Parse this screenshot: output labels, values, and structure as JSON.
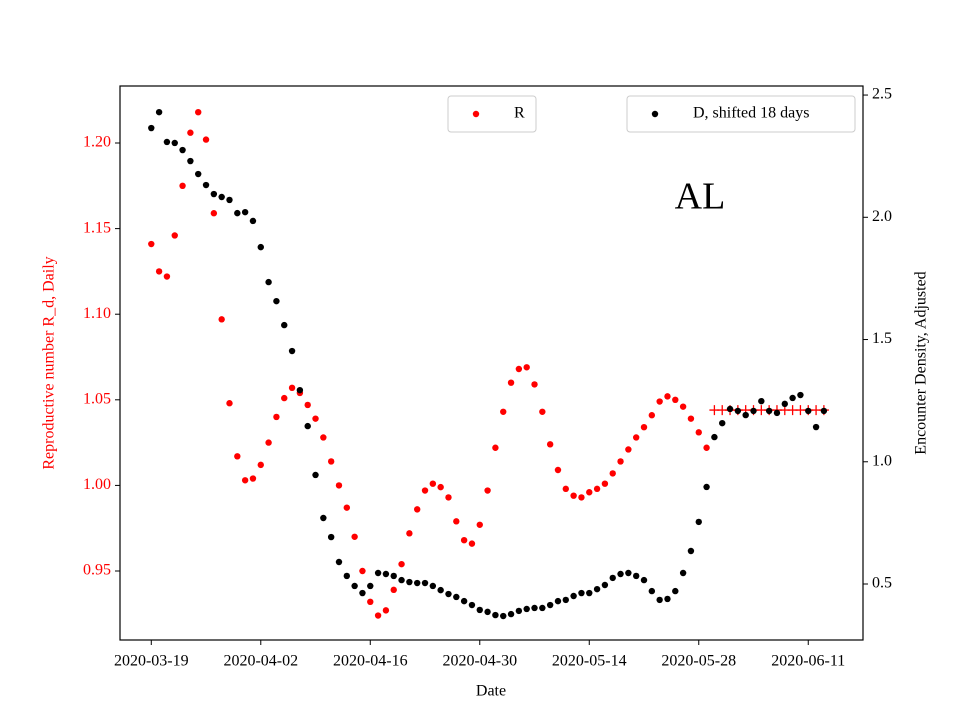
{
  "chart_data": {
    "type": "scatter",
    "annotation": "AL",
    "xlabel": "Date",
    "ylabel": "Reproductive number R_d, Daily",
    "y2label": "Encounter Density, Adjusted",
    "x": [
      "2020-03-19",
      "2020-03-20",
      "2020-03-21",
      "2020-03-22",
      "2020-03-23",
      "2020-03-24",
      "2020-03-25",
      "2020-03-26",
      "2020-03-27",
      "2020-03-28",
      "2020-03-29",
      "2020-03-30",
      "2020-03-31",
      "2020-04-01",
      "2020-04-02",
      "2020-04-03",
      "2020-04-04",
      "2020-04-05",
      "2020-04-06",
      "2020-04-07",
      "2020-04-08",
      "2020-04-09",
      "2020-04-10",
      "2020-04-11",
      "2020-04-12",
      "2020-04-13",
      "2020-04-14",
      "2020-04-15",
      "2020-04-16",
      "2020-04-17",
      "2020-04-18",
      "2020-04-19",
      "2020-04-20",
      "2020-04-21",
      "2020-04-22",
      "2020-04-23",
      "2020-04-24",
      "2020-04-25",
      "2020-04-26",
      "2020-04-27",
      "2020-04-28",
      "2020-04-29",
      "2020-04-30",
      "2020-05-01",
      "2020-05-02",
      "2020-05-03",
      "2020-05-04",
      "2020-05-05",
      "2020-05-06",
      "2020-05-07",
      "2020-05-08",
      "2020-05-09",
      "2020-05-10",
      "2020-05-11",
      "2020-05-12",
      "2020-05-13",
      "2020-05-14",
      "2020-05-15",
      "2020-05-16",
      "2020-05-17",
      "2020-05-18",
      "2020-05-19",
      "2020-05-20",
      "2020-05-21",
      "2020-05-22",
      "2020-05-23",
      "2020-05-24",
      "2020-05-25",
      "2020-05-26",
      "2020-05-27",
      "2020-05-28",
      "2020-05-29",
      "2020-05-30",
      "2020-05-31",
      "2020-06-01",
      "2020-06-02",
      "2020-06-03",
      "2020-06-04",
      "2020-06-05",
      "2020-06-06",
      "2020-06-07",
      "2020-06-08",
      "2020-06-09",
      "2020-06-10",
      "2020-06-11",
      "2020-06-12",
      "2020-06-13"
    ],
    "series": [
      {
        "name": "R",
        "color": "#ff0000",
        "marker": "dot",
        "axis": "y",
        "values": [
          1.141,
          1.125,
          1.122,
          1.146,
          1.175,
          1.206,
          1.218,
          1.202,
          1.159,
          1.097,
          1.048,
          1.017,
          1.003,
          1.004,
          1.012,
          1.025,
          1.04,
          1.051,
          1.057,
          1.054,
          1.047,
          1.039,
          1.028,
          1.014,
          1.0,
          0.987,
          0.97,
          0.95,
          0.932,
          0.924,
          0.927,
          0.939,
          0.954,
          0.972,
          0.986,
          0.997,
          1.001,
          0.999,
          0.993,
          0.979,
          0.968,
          0.966,
          0.977,
          0.997,
          1.022,
          1.043,
          1.06,
          1.068,
          1.069,
          1.059,
          1.043,
          1.024,
          1.009,
          0.998,
          0.994,
          0.993,
          0.996,
          0.998,
          1.001,
          1.007,
          1.014,
          1.021,
          1.028,
          1.034,
          1.041,
          1.049,
          1.052,
          1.05,
          1.046,
          1.039,
          1.031,
          1.022,
          null,
          null,
          null,
          null,
          null,
          null,
          null,
          null,
          null,
          null,
          null,
          null,
          null,
          null,
          null
        ]
      },
      {
        "color": "#ff0000",
        "marker": "plus",
        "axis": "y",
        "values": [
          null,
          null,
          null,
          null,
          null,
          null,
          null,
          null,
          null,
          null,
          null,
          null,
          null,
          null,
          null,
          null,
          null,
          null,
          null,
          null,
          null,
          null,
          null,
          null,
          null,
          null,
          null,
          null,
          null,
          null,
          null,
          null,
          null,
          null,
          null,
          null,
          null,
          null,
          null,
          null,
          null,
          null,
          null,
          null,
          null,
          null,
          null,
          null,
          null,
          null,
          null,
          null,
          null,
          null,
          null,
          null,
          null,
          null,
          null,
          null,
          null,
          null,
          null,
          null,
          null,
          null,
          null,
          null,
          null,
          null,
          null,
          null,
          1.044,
          1.044,
          1.044,
          1.044,
          1.044,
          1.044,
          1.044,
          1.044,
          1.044,
          1.044,
          1.044,
          1.044,
          1.044,
          1.044,
          1.044
        ]
      },
      {
        "name": "D, shifted 18 days",
        "color": "#000000",
        "marker": "dot",
        "axis": "y2",
        "values": [
          2.365,
          2.43,
          2.308,
          2.304,
          2.275,
          2.23,
          2.177,
          2.132,
          2.095,
          2.083,
          2.071,
          2.017,
          2.021,
          1.985,
          1.878,
          1.735,
          1.657,
          1.559,
          1.453,
          1.293,
          1.146,
          0.946,
          0.77,
          0.692,
          0.59,
          0.533,
          0.492,
          0.463,
          0.492,
          0.545,
          0.541,
          0.533,
          0.516,
          0.508,
          0.504,
          0.504,
          0.492,
          0.475,
          0.459,
          0.447,
          0.43,
          0.414,
          0.394,
          0.386,
          0.373,
          0.369,
          0.377,
          0.39,
          0.398,
          0.402,
          0.402,
          0.414,
          0.43,
          0.435,
          0.451,
          0.463,
          0.463,
          0.479,
          0.496,
          0.525,
          0.541,
          0.545,
          0.533,
          0.516,
          0.471,
          0.435,
          0.439,
          0.471,
          0.545,
          0.635,
          0.754,
          0.897,
          1.101,
          1.158,
          1.216,
          1.208,
          1.191,
          1.208,
          1.248,
          1.208,
          1.2,
          1.237,
          1.261,
          1.273,
          1.208,
          1.142,
          1.208
        ]
      }
    ],
    "xlim": [
      "2020-03-15",
      "2020-06-18"
    ],
    "xticks": [
      "2020-03-19",
      "2020-04-02",
      "2020-04-16",
      "2020-04-30",
      "2020-05-14",
      "2020-05-28",
      "2020-06-11"
    ],
    "ylim": [
      0.9097,
      1.2333
    ],
    "yticks": [
      0.95,
      {
        "value": 1.0,
        "label": "1.00"
      },
      1.05,
      {
        "value": 1.1,
        "label": "1.10"
      },
      1.15,
      {
        "value": 1.2,
        "label": "1.20"
      }
    ],
    "y2lim": [
      0.271,
      2.537
    ],
    "y2ticks": [
      0.5,
      {
        "value": 1.0,
        "label": "1.0"
      },
      1.5,
      {
        "value": 2.0,
        "label": "2.0"
      },
      2.5
    ],
    "ylabel_color": "#ff0000"
  }
}
